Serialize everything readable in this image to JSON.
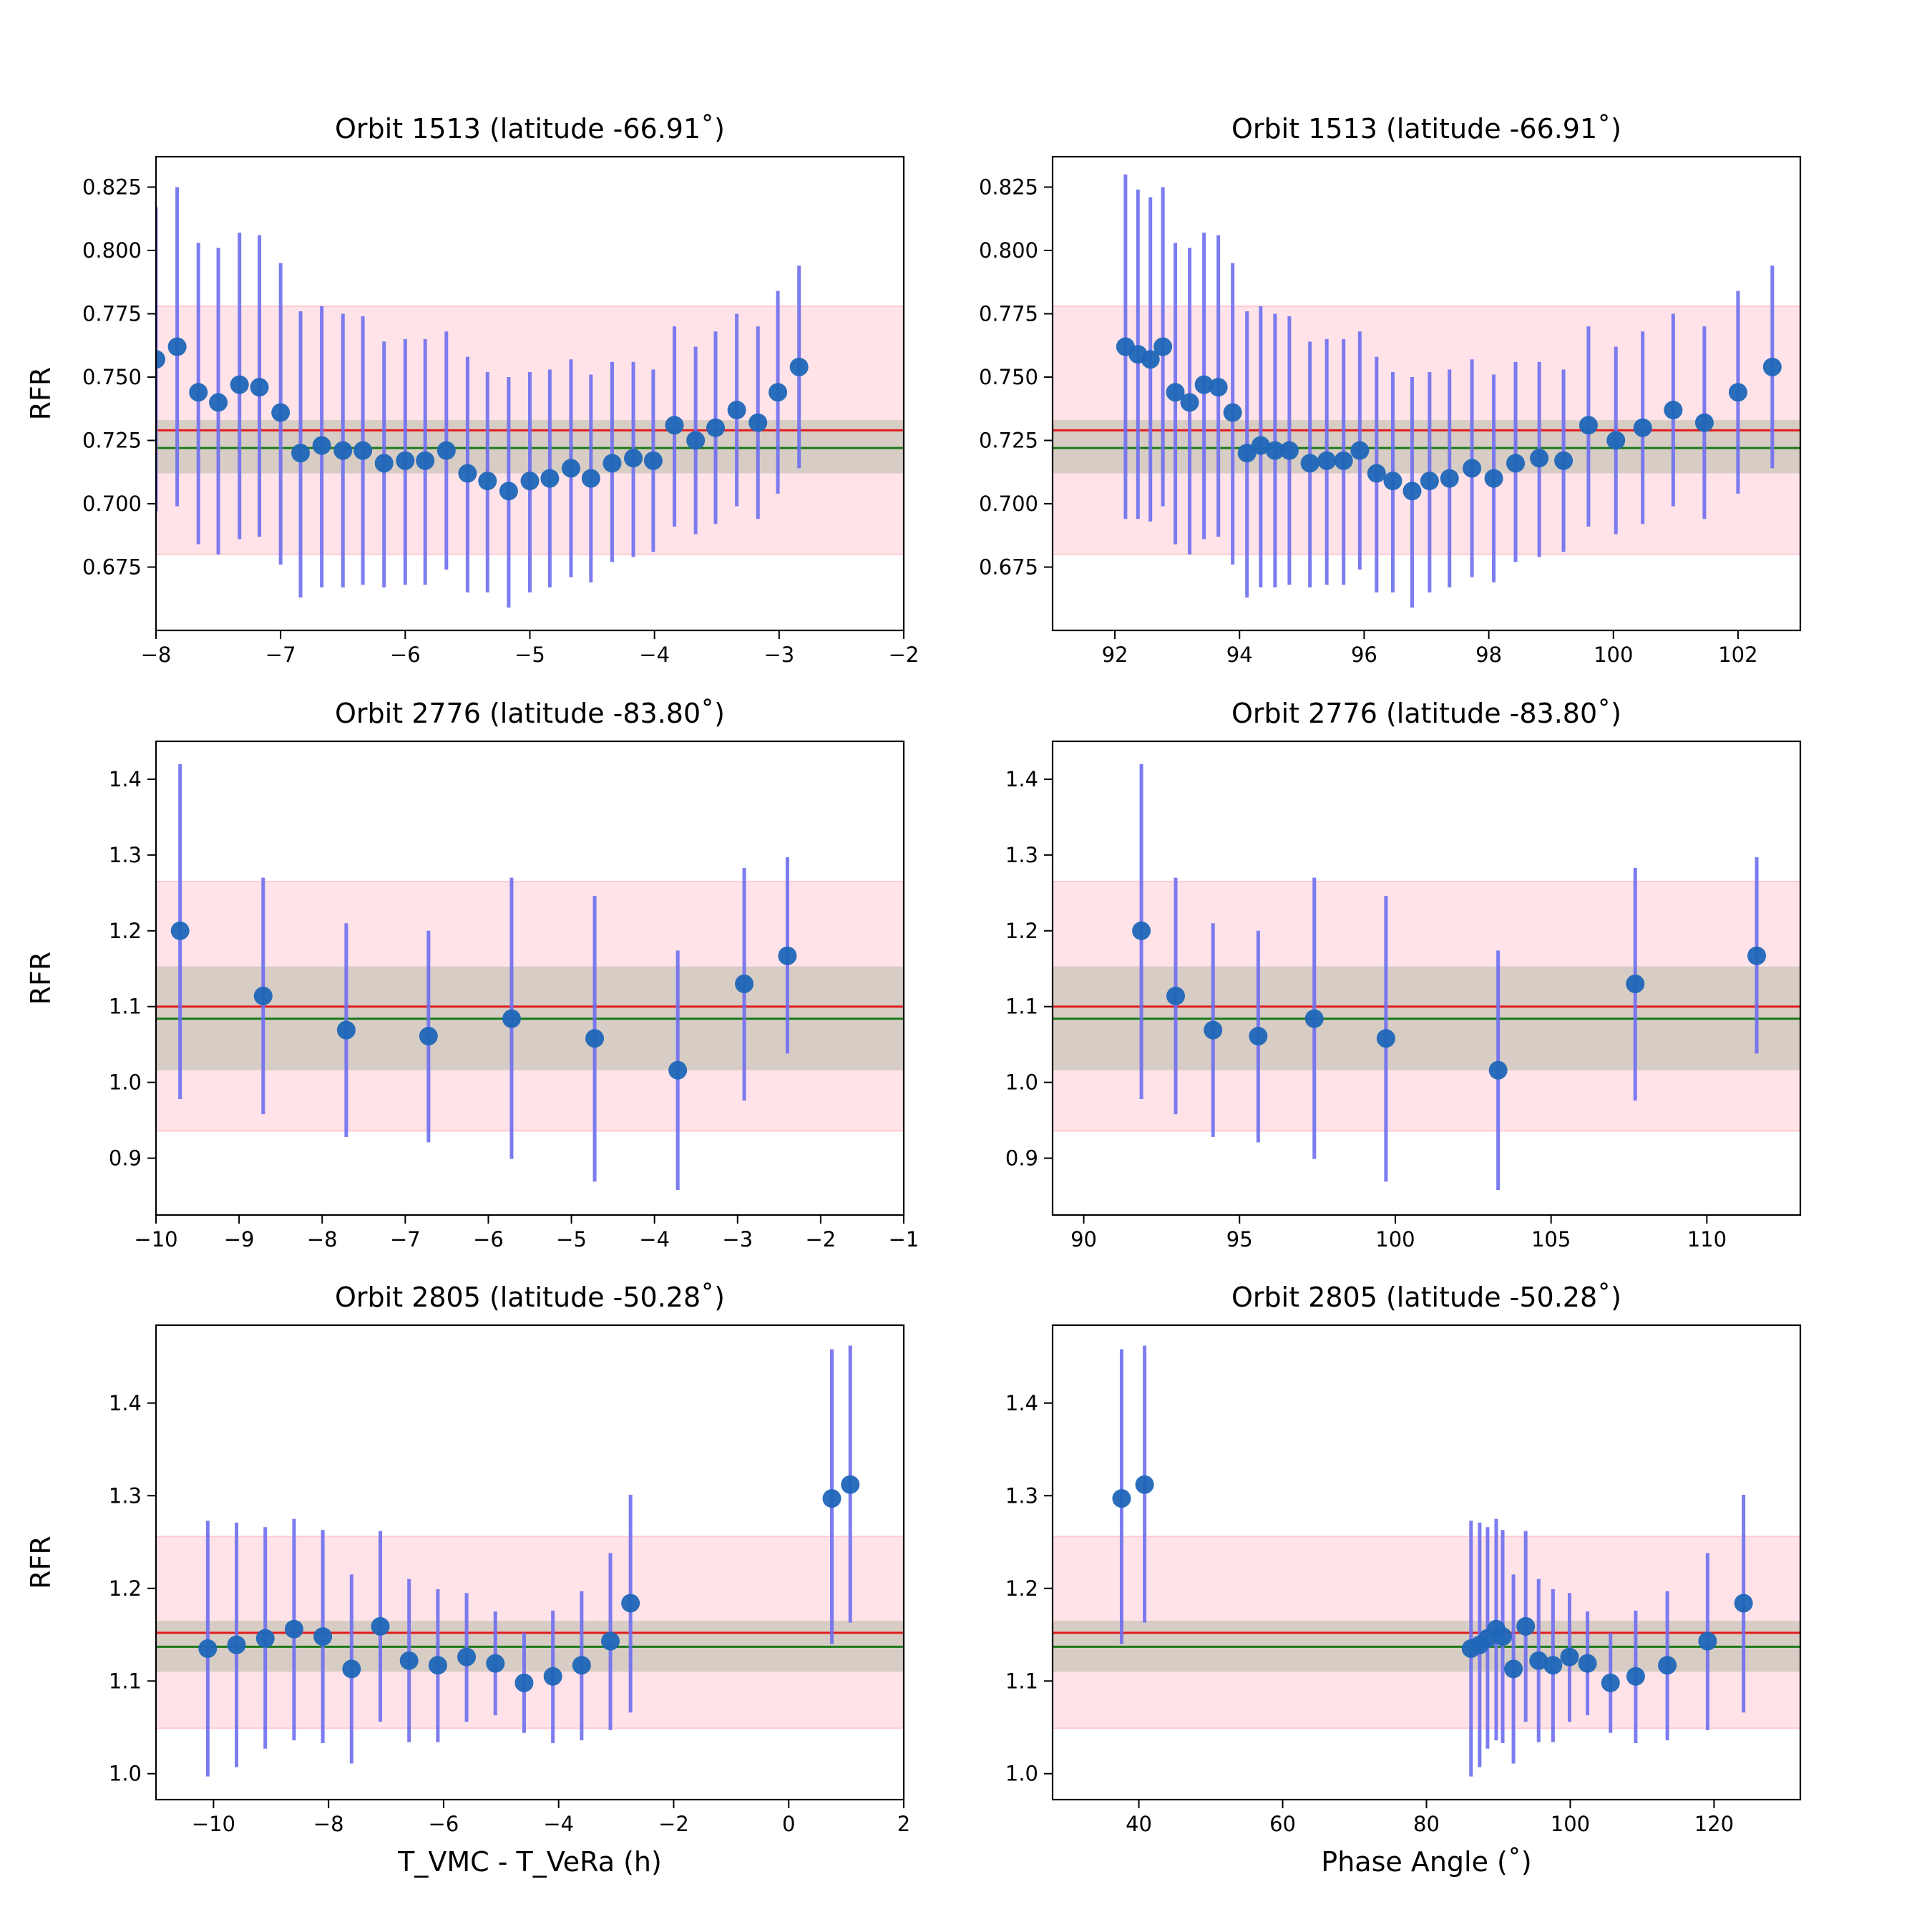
{
  "figure": {
    "colors": {
      "band_outer": "#ffc0cb",
      "band_inner": "#a9b29b",
      "mean_line": "#e11c1c",
      "median_line": "#1a7a1a",
      "errorbar": "#6e6ef0",
      "marker": "#1f66b8"
    }
  },
  "chart_data": [
    {
      "id": "orbit1513-time",
      "type": "scatter",
      "title": "Orbit 1513 (latitude -66.91˚)",
      "xlabel": "",
      "ylabel": "RFR",
      "xlim": [
        -8,
        -2
      ],
      "ylim": [
        0.65,
        0.837
      ],
      "xticks": [
        -8,
        -7,
        -6,
        -5,
        -4,
        -3,
        -2
      ],
      "xtick_labels": [
        "−8",
        "−7",
        "−6",
        "−5",
        "−4",
        "−3",
        "−2"
      ],
      "yticks": [
        0.675,
        0.7,
        0.725,
        0.75,
        0.775,
        0.8,
        0.825
      ],
      "ytick_labels": [
        "0.675",
        "0.700",
        "0.725",
        "0.750",
        "0.775",
        "0.800",
        "0.825"
      ],
      "grid": false,
      "ref": {
        "mean": 0.729,
        "median": 0.722,
        "band_outer": [
          0.68,
          0.778
        ],
        "band_inner": [
          0.712,
          0.733
        ]
      },
      "points": [
        {
          "x": -8.0,
          "y": 0.757,
          "lo": 0.697,
          "hi": 0.817
        },
        {
          "x": -7.83,
          "y": 0.762,
          "lo": 0.699,
          "hi": 0.825
        },
        {
          "x": -7.66,
          "y": 0.744,
          "lo": 0.684,
          "hi": 0.803
        },
        {
          "x": -7.5,
          "y": 0.74,
          "lo": 0.68,
          "hi": 0.801
        },
        {
          "x": -7.33,
          "y": 0.747,
          "lo": 0.686,
          "hi": 0.807
        },
        {
          "x": -7.17,
          "y": 0.746,
          "lo": 0.687,
          "hi": 0.806
        },
        {
          "x": -7.0,
          "y": 0.736,
          "lo": 0.676,
          "hi": 0.795
        },
        {
          "x": -6.84,
          "y": 0.72,
          "lo": 0.663,
          "hi": 0.776
        },
        {
          "x": -6.67,
          "y": 0.723,
          "lo": 0.667,
          "hi": 0.778
        },
        {
          "x": -6.5,
          "y": 0.721,
          "lo": 0.667,
          "hi": 0.775
        },
        {
          "x": -6.34,
          "y": 0.721,
          "lo": 0.668,
          "hi": 0.774
        },
        {
          "x": -6.17,
          "y": 0.716,
          "lo": 0.667,
          "hi": 0.764
        },
        {
          "x": -6.0,
          "y": 0.717,
          "lo": 0.668,
          "hi": 0.765
        },
        {
          "x": -5.84,
          "y": 0.717,
          "lo": 0.668,
          "hi": 0.765
        },
        {
          "x": -5.67,
          "y": 0.721,
          "lo": 0.674,
          "hi": 0.768
        },
        {
          "x": -5.5,
          "y": 0.712,
          "lo": 0.665,
          "hi": 0.758
        },
        {
          "x": -5.34,
          "y": 0.709,
          "lo": 0.665,
          "hi": 0.752
        },
        {
          "x": -5.17,
          "y": 0.705,
          "lo": 0.659,
          "hi": 0.75
        },
        {
          "x": -5.0,
          "y": 0.709,
          "lo": 0.665,
          "hi": 0.752
        },
        {
          "x": -4.84,
          "y": 0.71,
          "lo": 0.667,
          "hi": 0.753
        },
        {
          "x": -4.67,
          "y": 0.714,
          "lo": 0.671,
          "hi": 0.757
        },
        {
          "x": -4.51,
          "y": 0.71,
          "lo": 0.669,
          "hi": 0.751
        },
        {
          "x": -4.34,
          "y": 0.716,
          "lo": 0.677,
          "hi": 0.756
        },
        {
          "x": -4.17,
          "y": 0.718,
          "lo": 0.679,
          "hi": 0.756
        },
        {
          "x": -4.01,
          "y": 0.717,
          "lo": 0.681,
          "hi": 0.753
        },
        {
          "x": -3.84,
          "y": 0.731,
          "lo": 0.691,
          "hi": 0.77
        },
        {
          "x": -3.67,
          "y": 0.725,
          "lo": 0.688,
          "hi": 0.762
        },
        {
          "x": -3.51,
          "y": 0.73,
          "lo": 0.692,
          "hi": 0.768
        },
        {
          "x": -3.34,
          "y": 0.737,
          "lo": 0.699,
          "hi": 0.775
        },
        {
          "x": -3.17,
          "y": 0.732,
          "lo": 0.694,
          "hi": 0.77
        },
        {
          "x": -3.01,
          "y": 0.744,
          "lo": 0.704,
          "hi": 0.784
        },
        {
          "x": -2.84,
          "y": 0.754,
          "lo": 0.714,
          "hi": 0.794
        }
      ]
    },
    {
      "id": "orbit1513-phase",
      "type": "scatter",
      "title": "Orbit 1513 (latitude -66.91˚)",
      "xlabel": "",
      "ylabel": "",
      "xlim": [
        91.0,
        103.0
      ],
      "ylim": [
        0.65,
        0.837
      ],
      "xticks": [
        92,
        94,
        96,
        98,
        100,
        102
      ],
      "xtick_labels": [
        "92",
        "94",
        "96",
        "98",
        "100",
        "102"
      ],
      "yticks": [
        0.675,
        0.7,
        0.725,
        0.75,
        0.775,
        0.8,
        0.825
      ],
      "ytick_labels": [
        "0.675",
        "0.700",
        "0.725",
        "0.750",
        "0.775",
        "0.800",
        "0.825"
      ],
      "grid": false,
      "ref": {
        "mean": 0.729,
        "median": 0.722,
        "band_outer": [
          0.68,
          0.778
        ],
        "band_inner": [
          0.712,
          0.733
        ]
      },
      "points": [
        {
          "x": 92.17,
          "y": 0.762,
          "lo": 0.694,
          "hi": 0.83
        },
        {
          "x": 92.37,
          "y": 0.759,
          "lo": 0.694,
          "hi": 0.824
        },
        {
          "x": 92.57,
          "y": 0.757,
          "lo": 0.693,
          "hi": 0.821
        },
        {
          "x": 92.77,
          "y": 0.762,
          "lo": 0.699,
          "hi": 0.825
        },
        {
          "x": 92.97,
          "y": 0.744,
          "lo": 0.684,
          "hi": 0.803
        },
        {
          "x": 93.2,
          "y": 0.74,
          "lo": 0.68,
          "hi": 0.801
        },
        {
          "x": 93.43,
          "y": 0.747,
          "lo": 0.686,
          "hi": 0.807
        },
        {
          "x": 93.66,
          "y": 0.746,
          "lo": 0.687,
          "hi": 0.806
        },
        {
          "x": 93.89,
          "y": 0.736,
          "lo": 0.676,
          "hi": 0.795
        },
        {
          "x": 94.12,
          "y": 0.72,
          "lo": 0.663,
          "hi": 0.776
        },
        {
          "x": 94.34,
          "y": 0.723,
          "lo": 0.667,
          "hi": 0.778
        },
        {
          "x": 94.57,
          "y": 0.721,
          "lo": 0.667,
          "hi": 0.775
        },
        {
          "x": 94.8,
          "y": 0.721,
          "lo": 0.668,
          "hi": 0.774
        },
        {
          "x": 95.13,
          "y": 0.716,
          "lo": 0.667,
          "hi": 0.764
        },
        {
          "x": 95.4,
          "y": 0.717,
          "lo": 0.668,
          "hi": 0.765
        },
        {
          "x": 95.67,
          "y": 0.717,
          "lo": 0.668,
          "hi": 0.765
        },
        {
          "x": 95.93,
          "y": 0.721,
          "lo": 0.674,
          "hi": 0.768
        },
        {
          "x": 96.2,
          "y": 0.712,
          "lo": 0.665,
          "hi": 0.758
        },
        {
          "x": 96.46,
          "y": 0.709,
          "lo": 0.665,
          "hi": 0.752
        },
        {
          "x": 96.77,
          "y": 0.705,
          "lo": 0.659,
          "hi": 0.75
        },
        {
          "x": 97.05,
          "y": 0.709,
          "lo": 0.665,
          "hi": 0.752
        },
        {
          "x": 97.37,
          "y": 0.71,
          "lo": 0.667,
          "hi": 0.753
        },
        {
          "x": 97.73,
          "y": 0.714,
          "lo": 0.671,
          "hi": 0.757
        },
        {
          "x": 98.08,
          "y": 0.71,
          "lo": 0.669,
          "hi": 0.751
        },
        {
          "x": 98.43,
          "y": 0.716,
          "lo": 0.677,
          "hi": 0.756
        },
        {
          "x": 98.81,
          "y": 0.718,
          "lo": 0.679,
          "hi": 0.756
        },
        {
          "x": 99.2,
          "y": 0.717,
          "lo": 0.681,
          "hi": 0.753
        },
        {
          "x": 99.6,
          "y": 0.731,
          "lo": 0.691,
          "hi": 0.77
        },
        {
          "x": 100.04,
          "y": 0.725,
          "lo": 0.688,
          "hi": 0.762
        },
        {
          "x": 100.47,
          "y": 0.73,
          "lo": 0.692,
          "hi": 0.768
        },
        {
          "x": 100.96,
          "y": 0.737,
          "lo": 0.699,
          "hi": 0.775
        },
        {
          "x": 101.46,
          "y": 0.732,
          "lo": 0.694,
          "hi": 0.77
        },
        {
          "x": 102.0,
          "y": 0.744,
          "lo": 0.704,
          "hi": 0.784
        },
        {
          "x": 102.55,
          "y": 0.754,
          "lo": 0.714,
          "hi": 0.794
        }
      ]
    },
    {
      "id": "orbit2776-time",
      "type": "scatter",
      "title": "Orbit 2776 (latitude -83.80˚)",
      "xlabel": "",
      "ylabel": "RFR",
      "xlim": [
        -10,
        -1
      ],
      "ylim": [
        0.825,
        1.45
      ],
      "xticks": [
        -10,
        -9,
        -8,
        -7,
        -6,
        -5,
        -4,
        -3,
        -2,
        -1
      ],
      "xtick_labels": [
        "−10",
        "−9",
        "−8",
        "−7",
        "−6",
        "−5",
        "−4",
        "−3",
        "−2",
        "−1"
      ],
      "yticks": [
        0.9,
        1.0,
        1.1,
        1.2,
        1.3,
        1.4
      ],
      "ytick_labels": [
        "0.9",
        "1.0",
        "1.1",
        "1.2",
        "1.3",
        "1.4"
      ],
      "grid": false,
      "ref": {
        "mean": 1.1,
        "median": 1.084,
        "band_outer": [
          0.936,
          1.265
        ],
        "band_inner": [
          1.016,
          1.153
        ]
      },
      "points": [
        {
          "x": -9.71,
          "y": 1.2,
          "lo": 0.978,
          "hi": 1.42
        },
        {
          "x": -8.71,
          "y": 1.114,
          "lo": 0.958,
          "hi": 1.27
        },
        {
          "x": -7.71,
          "y": 1.069,
          "lo": 0.928,
          "hi": 1.21
        },
        {
          "x": -6.72,
          "y": 1.061,
          "lo": 0.921,
          "hi": 1.2
        },
        {
          "x": -5.72,
          "y": 1.084,
          "lo": 0.899,
          "hi": 1.27
        },
        {
          "x": -4.72,
          "y": 1.058,
          "lo": 0.869,
          "hi": 1.246
        },
        {
          "x": -3.72,
          "y": 1.016,
          "lo": 0.858,
          "hi": 1.174
        },
        {
          "x": -2.92,
          "y": 1.13,
          "lo": 0.976,
          "hi": 1.283
        },
        {
          "x": -2.4,
          "y": 1.167,
          "lo": 1.038,
          "hi": 1.297
        }
      ]
    },
    {
      "id": "orbit2776-phase",
      "type": "scatter",
      "title": "Orbit 2776 (latitude -83.80˚)",
      "xlabel": "",
      "ylabel": "",
      "xlim": [
        89.0,
        113.0
      ],
      "ylim": [
        0.825,
        1.45
      ],
      "xticks": [
        90,
        95,
        100,
        105,
        110
      ],
      "xtick_labels": [
        "90",
        "95",
        "100",
        "105",
        "110"
      ],
      "yticks": [
        0.9,
        1.0,
        1.1,
        1.2,
        1.3,
        1.4
      ],
      "ytick_labels": [
        "0.9",
        "1.0",
        "1.1",
        "1.2",
        "1.3",
        "1.4"
      ],
      "grid": false,
      "ref": {
        "mean": 1.1,
        "median": 1.084,
        "band_outer": [
          0.936,
          1.265
        ],
        "band_inner": [
          1.016,
          1.153
        ]
      },
      "points": [
        {
          "x": 91.85,
          "y": 1.2,
          "lo": 0.978,
          "hi": 1.42
        },
        {
          "x": 92.95,
          "y": 1.114,
          "lo": 0.958,
          "hi": 1.27
        },
        {
          "x": 94.15,
          "y": 1.069,
          "lo": 0.928,
          "hi": 1.21
        },
        {
          "x": 95.6,
          "y": 1.061,
          "lo": 0.921,
          "hi": 1.2
        },
        {
          "x": 97.4,
          "y": 1.084,
          "lo": 0.899,
          "hi": 1.27
        },
        {
          "x": 99.7,
          "y": 1.058,
          "lo": 0.869,
          "hi": 1.246
        },
        {
          "x": 103.3,
          "y": 1.016,
          "lo": 0.858,
          "hi": 1.174
        },
        {
          "x": 107.7,
          "y": 1.13,
          "lo": 0.976,
          "hi": 1.283
        },
        {
          "x": 111.6,
          "y": 1.167,
          "lo": 1.038,
          "hi": 1.297
        }
      ]
    },
    {
      "id": "orbit2805-time",
      "type": "scatter",
      "title": "Orbit 2805 (latitude -50.28˚)",
      "xlabel": "T_VMC - T_VeRa (h)",
      "ylabel": "RFR",
      "xlim": [
        -11,
        2
      ],
      "ylim": [
        0.972,
        1.484
      ],
      "xticks": [
        -10,
        -8,
        -6,
        -4,
        -2,
        0,
        2
      ],
      "xtick_labels": [
        "−10",
        "−8",
        "−6",
        "−4",
        "−2",
        "0",
        "2"
      ],
      "yticks": [
        1.0,
        1.1,
        1.2,
        1.3,
        1.4
      ],
      "ytick_labels": [
        "1.0",
        "1.1",
        "1.2",
        "1.3",
        "1.4"
      ],
      "grid": false,
      "ref": {
        "mean": 1.152,
        "median": 1.137,
        "band_outer": [
          1.049,
          1.256
        ],
        "band_inner": [
          1.11,
          1.165
        ]
      },
      "points": [
        {
          "x": -10.1,
          "y": 1.135,
          "lo": 0.997,
          "hi": 1.273
        },
        {
          "x": -9.6,
          "y": 1.139,
          "lo": 1.007,
          "hi": 1.271
        },
        {
          "x": -9.1,
          "y": 1.146,
          "lo": 1.027,
          "hi": 1.266
        },
        {
          "x": -8.6,
          "y": 1.156,
          "lo": 1.036,
          "hi": 1.275
        },
        {
          "x": -8.1,
          "y": 1.148,
          "lo": 1.033,
          "hi": 1.263
        },
        {
          "x": -7.6,
          "y": 1.113,
          "lo": 1.011,
          "hi": 1.215
        },
        {
          "x": -7.1,
          "y": 1.159,
          "lo": 1.056,
          "hi": 1.262
        },
        {
          "x": -6.6,
          "y": 1.122,
          "lo": 1.034,
          "hi": 1.21
        },
        {
          "x": -6.1,
          "y": 1.117,
          "lo": 1.034,
          "hi": 1.199
        },
        {
          "x": -5.6,
          "y": 1.126,
          "lo": 1.056,
          "hi": 1.195
        },
        {
          "x": -5.1,
          "y": 1.119,
          "lo": 1.063,
          "hi": 1.175
        },
        {
          "x": -4.6,
          "y": 1.098,
          "lo": 1.044,
          "hi": 1.152
        },
        {
          "x": -4.1,
          "y": 1.105,
          "lo": 1.033,
          "hi": 1.176
        },
        {
          "x": -3.6,
          "y": 1.117,
          "lo": 1.036,
          "hi": 1.197
        },
        {
          "x": -3.1,
          "y": 1.143,
          "lo": 1.047,
          "hi": 1.238
        },
        {
          "x": -2.75,
          "y": 1.184,
          "lo": 1.066,
          "hi": 1.301
        },
        {
          "x": 0.75,
          "y": 1.297,
          "lo": 1.14,
          "hi": 1.458
        },
        {
          "x": 1.07,
          "y": 1.312,
          "lo": 1.163,
          "hi": 1.462
        }
      ]
    },
    {
      "id": "orbit2805-phase",
      "type": "scatter",
      "title": "Orbit 2805 (latitude -50.28˚)",
      "xlabel": "Phase Angle (˚)",
      "ylabel": "",
      "xlim": [
        28.0,
        132.0
      ],
      "ylim": [
        0.972,
        1.484
      ],
      "xticks": [
        40,
        60,
        80,
        100,
        120
      ],
      "xtick_labels": [
        "40",
        "60",
        "80",
        "100",
        "120"
      ],
      "yticks": [
        1.0,
        1.1,
        1.2,
        1.3,
        1.4
      ],
      "ytick_labels": [
        "1.0",
        "1.1",
        "1.2",
        "1.3",
        "1.4"
      ],
      "grid": false,
      "ref": {
        "mean": 1.152,
        "median": 1.137,
        "band_outer": [
          1.049,
          1.256
        ],
        "band_inner": [
          1.11,
          1.165
        ]
      },
      "points": [
        {
          "x": 37.6,
          "y": 1.297,
          "lo": 1.14,
          "hi": 1.458
        },
        {
          "x": 40.8,
          "y": 1.312,
          "lo": 1.163,
          "hi": 1.462
        },
        {
          "x": 86.2,
          "y": 1.135,
          "lo": 0.997,
          "hi": 1.273
        },
        {
          "x": 87.4,
          "y": 1.139,
          "lo": 1.007,
          "hi": 1.271
        },
        {
          "x": 88.5,
          "y": 1.146,
          "lo": 1.027,
          "hi": 1.266
        },
        {
          "x": 89.7,
          "y": 1.156,
          "lo": 1.036,
          "hi": 1.275
        },
        {
          "x": 90.6,
          "y": 1.148,
          "lo": 1.033,
          "hi": 1.263
        },
        {
          "x": 92.1,
          "y": 1.113,
          "lo": 1.011,
          "hi": 1.215
        },
        {
          "x": 93.8,
          "y": 1.159,
          "lo": 1.056,
          "hi": 1.262
        },
        {
          "x": 95.6,
          "y": 1.122,
          "lo": 1.034,
          "hi": 1.21
        },
        {
          "x": 97.6,
          "y": 1.117,
          "lo": 1.034,
          "hi": 1.199
        },
        {
          "x": 99.9,
          "y": 1.126,
          "lo": 1.056,
          "hi": 1.195
        },
        {
          "x": 102.4,
          "y": 1.119,
          "lo": 1.063,
          "hi": 1.175
        },
        {
          "x": 105.6,
          "y": 1.098,
          "lo": 1.044,
          "hi": 1.152
        },
        {
          "x": 109.1,
          "y": 1.105,
          "lo": 1.033,
          "hi": 1.176
        },
        {
          "x": 113.5,
          "y": 1.117,
          "lo": 1.036,
          "hi": 1.197
        },
        {
          "x": 119.1,
          "y": 1.143,
          "lo": 1.047,
          "hi": 1.238
        },
        {
          "x": 124.1,
          "y": 1.184,
          "lo": 1.066,
          "hi": 1.301
        }
      ]
    }
  ]
}
